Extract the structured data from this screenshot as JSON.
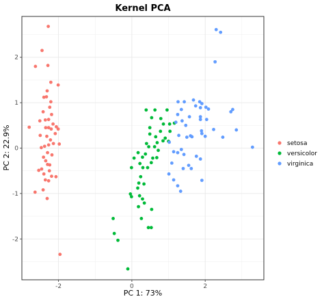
{
  "chart_data": {
    "type": "scatter",
    "title": "Kernel PCA",
    "xlabel": "PC 1: 73%",
    "ylabel": "PC 2: 22.9%",
    "xlim": [
      -3.0,
      3.6
    ],
    "ylim": [
      -2.9,
      2.9
    ],
    "xticks": [
      -2,
      0,
      2
    ],
    "yticks": [
      -2,
      -1,
      0,
      1,
      2
    ],
    "grid": true,
    "legend_position": "right",
    "series": [
      {
        "name": "setosa",
        "color": "#f8766d",
        "points": [
          [
            -2.28,
            2.68
          ],
          [
            -2.45,
            2.15
          ],
          [
            -2.63,
            1.8
          ],
          [
            -2.29,
            1.82
          ],
          [
            -2.01,
            1.39
          ],
          [
            -2.21,
            1.45
          ],
          [
            -2.31,
            1.26
          ],
          [
            -2.4,
            1.12
          ],
          [
            -2.33,
            1.13
          ],
          [
            -2.21,
            1.02
          ],
          [
            -2.24,
            0.9
          ],
          [
            -2.42,
            0.8
          ],
          [
            -2.19,
            0.74
          ],
          [
            -2.27,
            0.63
          ],
          [
            -2.36,
            0.62
          ],
          [
            -2.51,
            0.6
          ],
          [
            -2.15,
            0.53
          ],
          [
            -2.06,
            0.47
          ],
          [
            -2.01,
            0.42
          ],
          [
            -2.35,
            0.45
          ],
          [
            -2.27,
            0.45
          ],
          [
            -2.2,
            0.42
          ],
          [
            -2.8,
            0.46
          ],
          [
            -2.09,
            0.32
          ],
          [
            -2.5,
            0.28
          ],
          [
            -2.32,
            0.26
          ],
          [
            -2.22,
            0.18
          ],
          [
            -2.14,
            0.1
          ],
          [
            -1.98,
            0.09
          ],
          [
            -2.27,
            0.07
          ],
          [
            -2.38,
            0.04
          ],
          [
            -2.47,
            0.01
          ],
          [
            -2.18,
            -0.15
          ],
          [
            -2.41,
            -0.2
          ],
          [
            -2.35,
            -0.28
          ],
          [
            -2.24,
            -0.37
          ],
          [
            -2.3,
            -0.36
          ],
          [
            -2.46,
            -0.46
          ],
          [
            -2.54,
            -0.49
          ],
          [
            -2.4,
            -0.57
          ],
          [
            -2.19,
            -0.62
          ],
          [
            -2.07,
            -0.63
          ],
          [
            -2.27,
            -0.72
          ],
          [
            -2.36,
            -0.7
          ],
          [
            -2.42,
            -0.92
          ],
          [
            -2.64,
            -0.97
          ],
          [
            -2.31,
            -1.11
          ],
          [
            -1.96,
            -2.34
          ],
          [
            -2.25,
            -0.5
          ],
          [
            -2.3,
            -0.1
          ]
        ]
      },
      {
        "name": "versicolor",
        "color": "#00ba38",
        "points": [
          [
            0.39,
            0.84
          ],
          [
            0.63,
            0.84
          ],
          [
            0.96,
            0.84
          ],
          [
            0.54,
            0.67
          ],
          [
            0.79,
            0.65
          ],
          [
            1.03,
            0.53
          ],
          [
            0.86,
            0.53
          ],
          [
            1.16,
            0.55
          ],
          [
            0.49,
            0.45
          ],
          [
            1.04,
            0.37
          ],
          [
            0.78,
            0.37
          ],
          [
            0.49,
            0.31
          ],
          [
            0.65,
            0.25
          ],
          [
            0.91,
            0.22
          ],
          [
            0.85,
            0.16
          ],
          [
            1.0,
            0.15
          ],
          [
            0.4,
            0.1
          ],
          [
            0.69,
            0.12
          ],
          [
            0.46,
            0.03
          ],
          [
            0.62,
            0.03
          ],
          [
            0.72,
            -0.05
          ],
          [
            0.17,
            -0.1
          ],
          [
            0.37,
            -0.13
          ],
          [
            0.29,
            -0.2
          ],
          [
            0.06,
            -0.22
          ],
          [
            0.57,
            -0.22
          ],
          [
            0.68,
            -0.21
          ],
          [
            0.53,
            -0.32
          ],
          [
            0.22,
            -0.34
          ],
          [
            -0.01,
            -0.43
          ],
          [
            0.3,
            -0.43
          ],
          [
            0.43,
            -0.43
          ],
          [
            0.24,
            -0.63
          ],
          [
            0.19,
            -0.77
          ],
          [
            0.33,
            -0.79
          ],
          [
            0.16,
            -0.88
          ],
          [
            -0.04,
            -1.01
          ],
          [
            0.21,
            -1.05
          ],
          [
            -0.01,
            -1.07
          ],
          [
            0.29,
            -1.12
          ],
          [
            0.34,
            -1.21
          ],
          [
            0.18,
            -1.29
          ],
          [
            0.54,
            -1.35
          ],
          [
            -0.51,
            -1.55
          ],
          [
            0.26,
            -1.55
          ],
          [
            -0.48,
            -1.88
          ],
          [
            0.45,
            -1.75
          ],
          [
            0.53,
            -1.75
          ],
          [
            -0.38,
            -2.03
          ],
          [
            -0.11,
            -2.66
          ]
        ]
      },
      {
        "name": "virginica",
        "color": "#619cff",
        "points": [
          [
            2.3,
            2.61
          ],
          [
            2.42,
            2.55
          ],
          [
            2.27,
            1.9
          ],
          [
            1.26,
            1.02
          ],
          [
            1.43,
            1.02
          ],
          [
            1.68,
            1.06
          ],
          [
            1.85,
            1.02
          ],
          [
            1.91,
            0.98
          ],
          [
            1.74,
            0.93
          ],
          [
            1.87,
            0.89
          ],
          [
            2.02,
            0.9
          ],
          [
            2.09,
            0.86
          ],
          [
            1.35,
            0.85
          ],
          [
            2.75,
            0.85
          ],
          [
            2.7,
            0.8
          ],
          [
            1.25,
            0.74
          ],
          [
            1.57,
            0.69
          ],
          [
            1.87,
            0.69
          ],
          [
            1.87,
            0.63
          ],
          [
            1.37,
            0.6
          ],
          [
            2.04,
            0.63
          ],
          [
            1.2,
            0.57
          ],
          [
            1.47,
            0.5
          ],
          [
            2.23,
            0.41
          ],
          [
            2.85,
            0.4
          ],
          [
            1.9,
            0.38
          ],
          [
            1.91,
            0.32
          ],
          [
            1.28,
            0.28
          ],
          [
            1.6,
            0.27
          ],
          [
            2.0,
            0.26
          ],
          [
            1.64,
            0.25
          ],
          [
            1.5,
            0.24
          ],
          [
            2.48,
            0.24
          ],
          [
            1.02,
            0.13
          ],
          [
            3.29,
            0.02
          ],
          [
            1.35,
            -0.03
          ],
          [
            1.14,
            -0.08
          ],
          [
            1.25,
            -0.1
          ],
          [
            1.42,
            -0.14
          ],
          [
            1.76,
            -0.18
          ],
          [
            1.87,
            -0.24
          ],
          [
            1.09,
            -0.33
          ],
          [
            1.55,
            -0.38
          ],
          [
            1.4,
            -0.45
          ],
          [
            1.62,
            -0.45
          ],
          [
            1.01,
            -0.57
          ],
          [
            1.14,
            -0.7
          ],
          [
            1.91,
            -0.71
          ],
          [
            1.25,
            -0.83
          ],
          [
            1.33,
            -0.95
          ]
        ]
      }
    ]
  }
}
